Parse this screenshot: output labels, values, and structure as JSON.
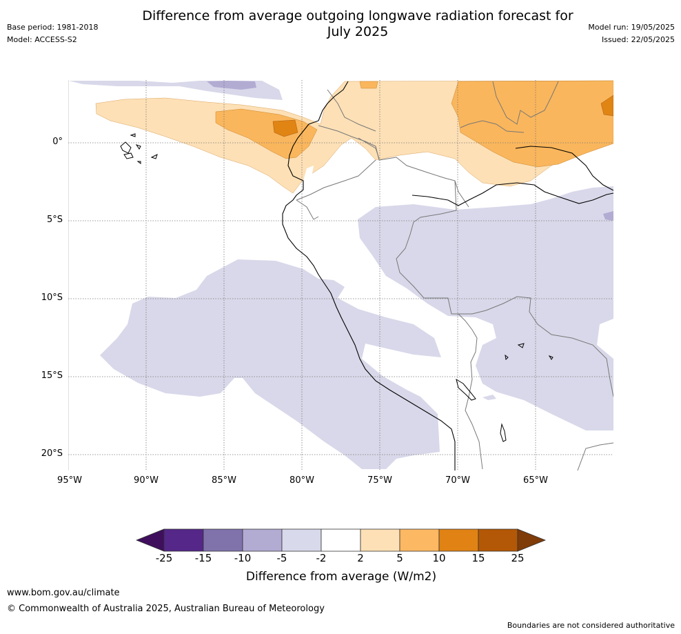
{
  "header": {
    "title_line1": "Difference from average outgoing longwave radiation forecast for",
    "title_line2": "July 2025",
    "base_period": "Base period: 1981-2018",
    "model": "Model: ACCESS-S2",
    "model_run": "Model run: 19/05/2025",
    "issued": "Issued: 22/05/2025"
  },
  "map": {
    "region": "Peru / western South America",
    "lat_labels": [
      "0°",
      "5°S",
      "10°S",
      "15°S",
      "20°S"
    ],
    "lon_labels": [
      "95°W",
      "90°W",
      "85°W",
      "80°W",
      "75°W",
      "70°W",
      "65°W"
    ],
    "grid": "dotted gray",
    "colors": {
      "light_orange": "#fde0b6",
      "orange": "#fab65c",
      "dark_orange": "#e08414",
      "light_purple": "#d8d8ea"
    }
  },
  "colorbar": {
    "title": "Difference from average (W/m2)",
    "labels": [
      "-25",
      "-15",
      "-10",
      "-5",
      "-2",
      "2",
      "5",
      "10",
      "15",
      "25"
    ],
    "colors": [
      "#3f0f5e",
      "#542788",
      "#8073ac",
      "#b2abd2",
      "#d8daeb",
      "#ffffff",
      "#fee0b6",
      "#fdb863",
      "#e08214",
      "#b35806",
      "#7f3b08"
    ]
  },
  "footer": {
    "url": "www.bom.gov.au/climate",
    "copyright": "© Commonwealth of Australia 2025, Australian Bureau of Meteorology",
    "disclaimer": "Boundaries are not considered authoritative"
  }
}
